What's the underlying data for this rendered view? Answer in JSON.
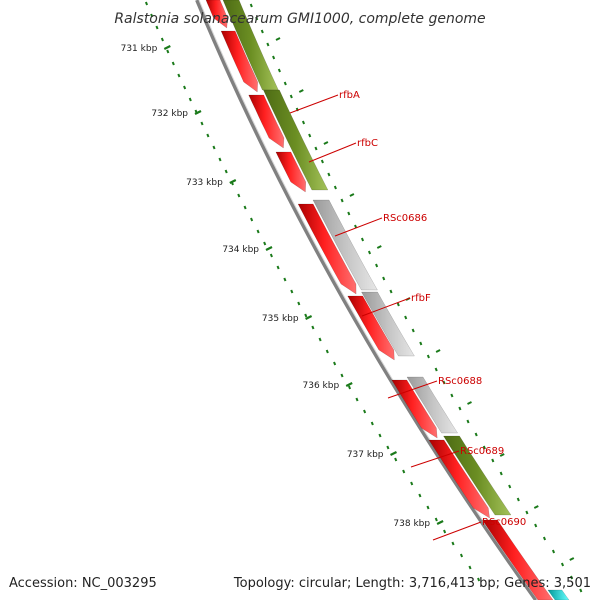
{
  "title": "Ralstonia solanacearum GMI1000, complete genome",
  "accession": "Accession: NC_003295",
  "summary": "Topology: circular; Length: 3,716,413 bp; Genes: 3,501",
  "colors": {
    "backbone": "#808080",
    "forward_cds": "#ff0000",
    "olive_feature": "#6b8e23",
    "gray_feature": "#bebebe",
    "cyan_feature": "#00cccc",
    "ticks": "#1a7a1a",
    "label_text": "#cc0000"
  },
  "ticks": [
    {
      "label": "731 kbp"
    },
    {
      "label": "732 kbp"
    },
    {
      "label": "733 kbp"
    },
    {
      "label": "734 kbp"
    },
    {
      "label": "735 kbp"
    },
    {
      "label": "736 kbp"
    },
    {
      "label": "737 kbp"
    },
    {
      "label": "738 kbp"
    }
  ],
  "gene_labels": [
    {
      "name": "rfbA"
    },
    {
      "name": "rfbC"
    },
    {
      "name": "RSc0686"
    },
    {
      "name": "rfbF"
    },
    {
      "name": "RSc0688"
    },
    {
      "name": "RSc0689"
    },
    {
      "name": "RSc0690"
    }
  ]
}
